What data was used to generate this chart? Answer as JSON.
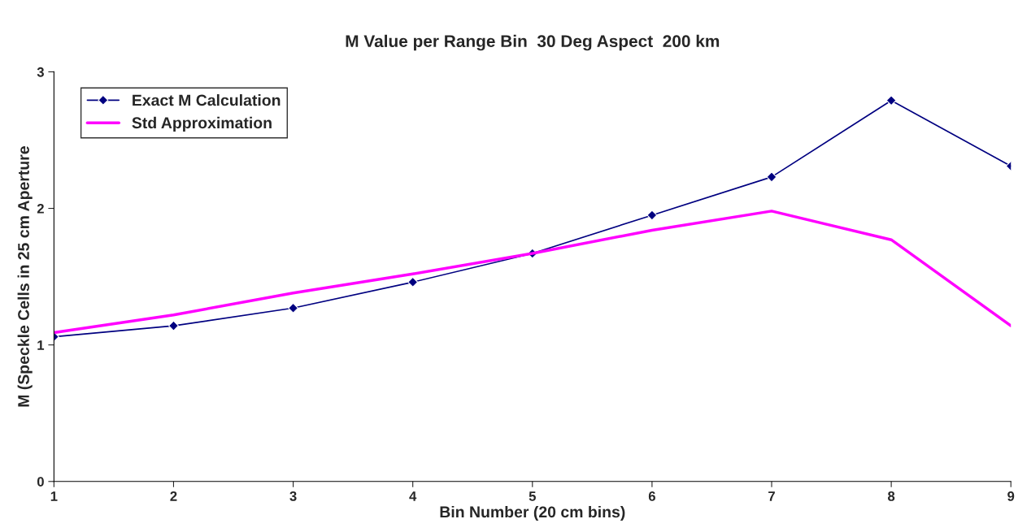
{
  "chart_data": {
    "type": "line",
    "title": "M Value per Range Bin  30 Deg Aspect  200 km",
    "xlabel": "Bin Number (20 cm bins)",
    "ylabel": "M (Speckle Cells in 25 cm Aperture",
    "x": [
      1,
      2,
      3,
      4,
      5,
      6,
      7,
      8,
      9
    ],
    "series": [
      {
        "name": "Exact M Calculation",
        "color": "#000080",
        "marker": "diamond",
        "values": [
          1.06,
          1.14,
          1.27,
          1.46,
          1.67,
          1.95,
          2.23,
          2.79,
          2.31
        ]
      },
      {
        "name": "Std Approximation",
        "color": "#ff00ff",
        "marker": "none",
        "values": [
          1.09,
          1.22,
          1.38,
          1.52,
          1.67,
          1.84,
          1.98,
          1.77,
          1.14
        ]
      }
    ],
    "xlim": [
      1,
      9
    ],
    "xticks": [
      1,
      2,
      3,
      4,
      5,
      6,
      7,
      8,
      9
    ],
    "ylim": [
      0,
      3
    ],
    "yticks": [
      0,
      1,
      2,
      3
    ],
    "grid": false,
    "legend": "top left"
  }
}
